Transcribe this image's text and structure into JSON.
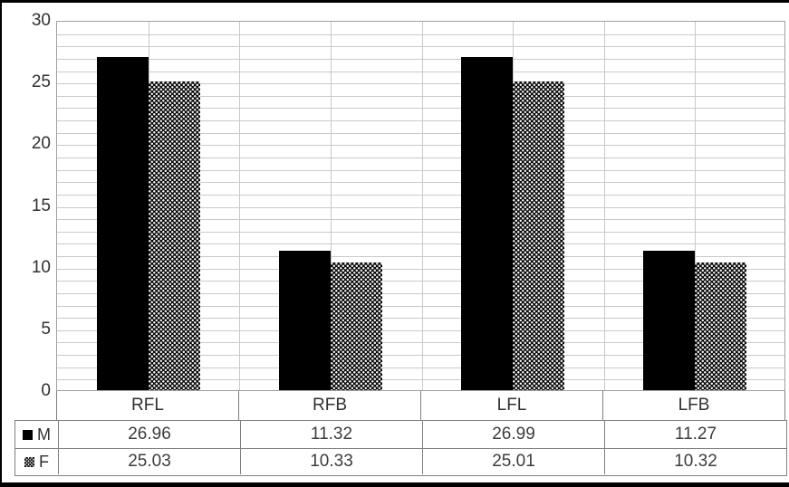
{
  "chart_data": {
    "type": "bar",
    "title": "",
    "categories": [
      "RFL",
      "RFB",
      "LFL",
      "LFB"
    ],
    "series": [
      {
        "name": "M",
        "fill": "solid-black",
        "values": [
          26.96,
          11.32,
          26.99,
          11.27
        ]
      },
      {
        "name": "F",
        "fill": "black-white-checker",
        "values": [
          25.03,
          10.33,
          25.01,
          10.32
        ]
      }
    ],
    "xlabel": "",
    "ylabel": "",
    "ylim": [
      0,
      30
    ],
    "y_ticks": [
      0,
      5,
      10,
      15,
      20,
      25,
      30
    ],
    "grid": {
      "horizontal_unit": 1,
      "vertical_lines_per_category": 2,
      "shown": true
    },
    "legend_position": "data-table-left-column",
    "data_table_shown": true,
    "value_decimals": 2
  },
  "colors": {
    "bar_m": "#000000",
    "bar_f_base": "#0a0a0a",
    "bar_f_dots": "#f4f4f4",
    "gridline": "#c9c9c9",
    "plot_border": "#a0a0a0",
    "table_border": "#7f7f7f",
    "text": "#303030",
    "background": "#ffffff",
    "frame": "#000000"
  }
}
